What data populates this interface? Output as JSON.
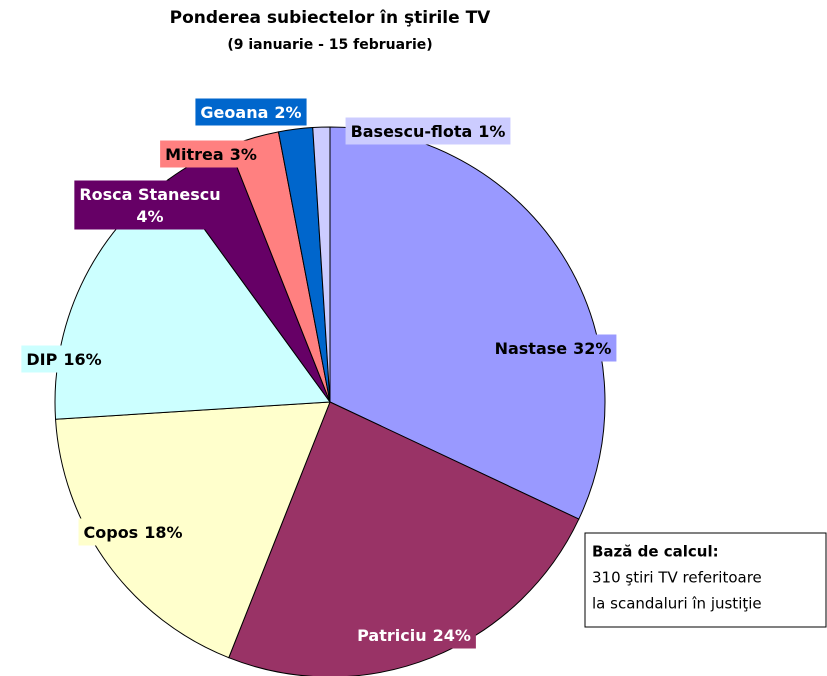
{
  "chart_data": {
    "type": "pie",
    "title": "Ponderea subiectelor în ştirile TV",
    "subtitle": "(9 ianuarie - 15 februarie)",
    "categories": [
      "Nastase",
      "Patriciu",
      "Copos",
      "DIP",
      "Rosca Stanescu",
      "Mitrea",
      "Geoana",
      "Basescu-flota"
    ],
    "values": [
      32,
      24,
      18,
      16,
      4,
      3,
      2,
      1
    ],
    "value_labels": [
      "32%",
      "24%",
      "18%",
      "16%",
      "4%",
      "3%",
      "2%",
      "1%"
    ],
    "colors": [
      "#9999ff",
      "#993366",
      "#ffffcc",
      "#ccffff",
      "#660066",
      "#ff8080",
      "#0066cc",
      "#ccccff"
    ],
    "note": {
      "heading": "Bază de calcul:",
      "lines": [
        "310 ştiri TV referitoare",
        "la scandaluri în justiţie"
      ]
    }
  }
}
